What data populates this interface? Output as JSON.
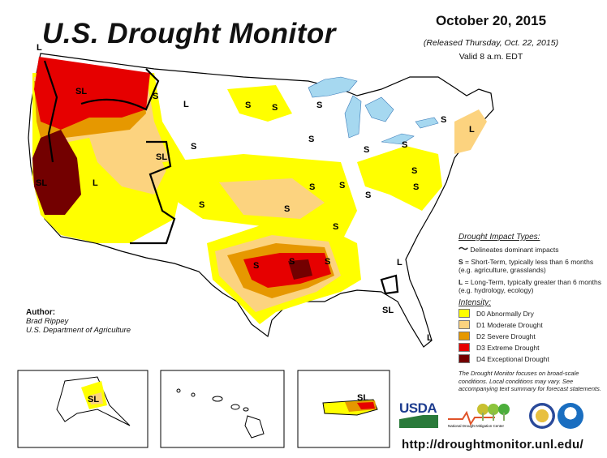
{
  "header": {
    "title": "U.S. Drought Monitor",
    "date": "October 20, 2015",
    "released": "(Released Thursday, Oct. 22, 2015)",
    "valid": "Valid 8 a.m. EDT"
  },
  "legend": {
    "impact_header": "Drought Impact Types:",
    "delineates": "Delineates dominant impacts",
    "short_term_key": "S",
    "short_term": "= Short-Term, typically less than 6 months (e.g. agriculture, grasslands)",
    "long_term_key": "L",
    "long_term": "= Long-Term, typically greater than 6 months (e.g. hydrology, ecology)",
    "intensity_header": "Intensity:",
    "categories": [
      {
        "label": "D0 Abnormally Dry",
        "color": "#ffff00"
      },
      {
        "label": "D1 Moderate Drought",
        "color": "#fcd37f"
      },
      {
        "label": "D2 Severe Drought",
        "color": "#e69800"
      },
      {
        "label": "D3 Extreme Drought",
        "color": "#e60000"
      },
      {
        "label": "D4 Exceptional Drought",
        "color": "#730000"
      }
    ],
    "note": "The Drought Monitor focuses on broad-scale conditions. Local conditions may vary. See accompanying text summary for forecast statements."
  },
  "author": {
    "label": "Author:",
    "name": "Brad Rippey",
    "org": "U.S. Department of Agriculture"
  },
  "map_labels": [
    "L",
    "SL",
    "S",
    "L",
    "S",
    "SL",
    "S",
    "L",
    "SL",
    "S",
    "S",
    "S",
    "S",
    "S",
    "S",
    "S",
    "S",
    "S",
    "S",
    "S",
    "L",
    "S",
    "S",
    "S",
    "S",
    "S",
    "S",
    "L",
    "SL",
    "L"
  ],
  "insets": {
    "alaska_label": "SL",
    "puerto_rico_label": "SL"
  },
  "logos": {
    "usda": "USDA",
    "ndmc": "National Drought Mitigation Center"
  },
  "url": "http://droughtmonitor.unl.edu/",
  "colors": {
    "water": "#a6d8f0",
    "border": "#000000",
    "rivers": "#4f9ee8"
  }
}
